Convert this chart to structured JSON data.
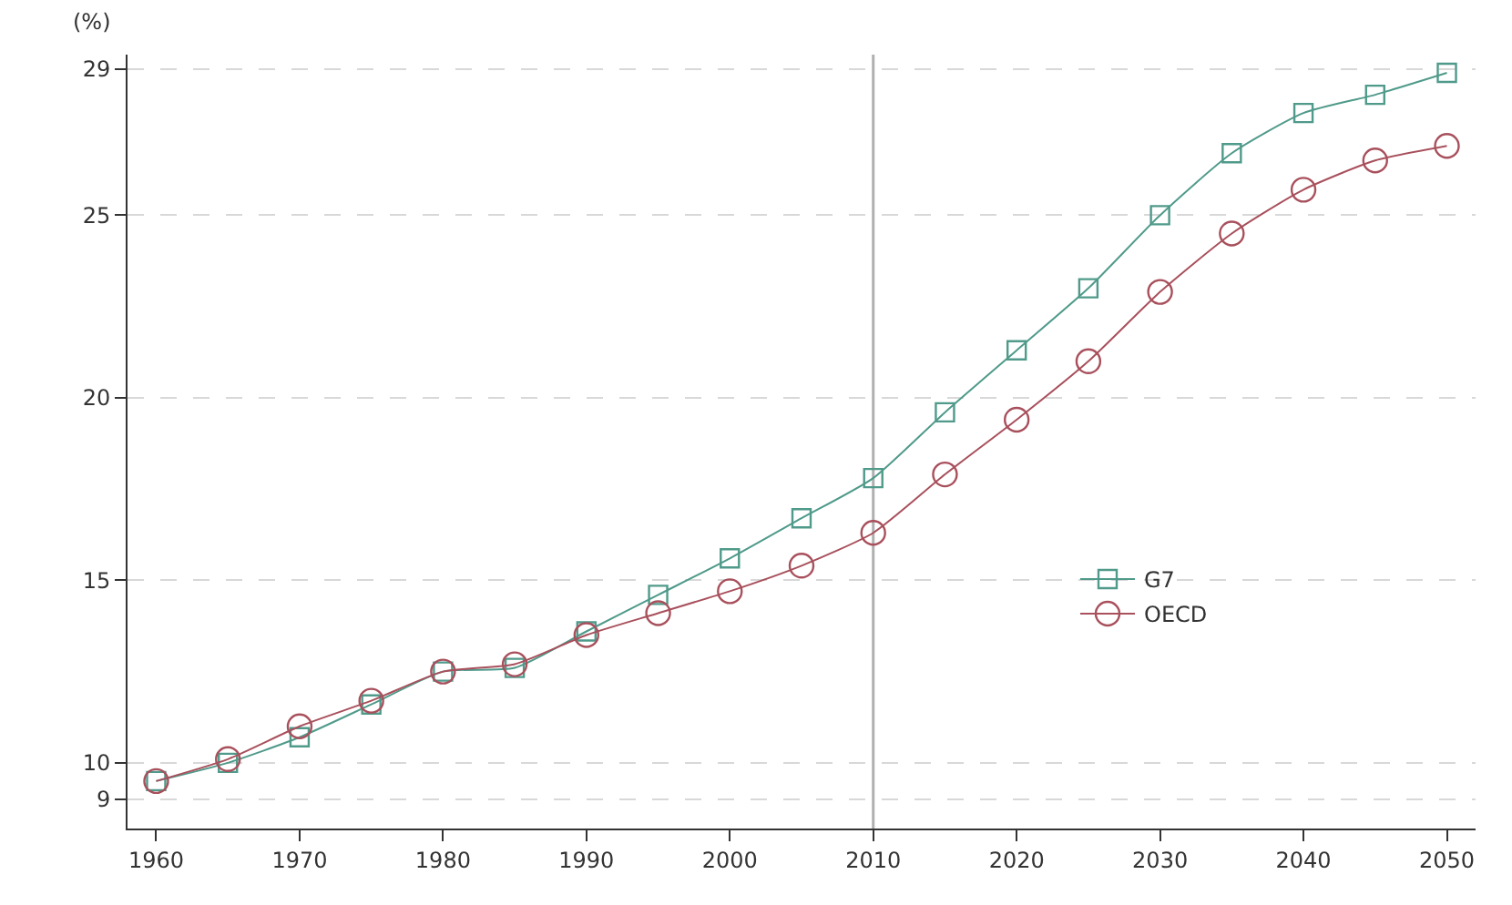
{
  "chart_data": {
    "type": "line",
    "ylabel": "(%)",
    "x": [
      1960,
      1965,
      1970,
      1975,
      1980,
      1985,
      1990,
      1995,
      2000,
      2005,
      2010,
      2015,
      2020,
      2025,
      2030,
      2035,
      2040,
      2045,
      2050
    ],
    "series": [
      {
        "name": "G7",
        "color": "#4f9a8a",
        "marker": "square",
        "values": [
          9.5,
          10.0,
          10.7,
          11.6,
          12.5,
          12.6,
          13.6,
          14.6,
          15.6,
          16.7,
          17.8,
          19.6,
          21.3,
          23.0,
          25.0,
          26.7,
          27.8,
          28.3,
          28.9
        ]
      },
      {
        "name": "OECD",
        "color": "#a8505c",
        "marker": "circle",
        "values": [
          9.5,
          10.1,
          11.0,
          11.7,
          12.5,
          12.7,
          13.5,
          14.1,
          14.7,
          15.4,
          16.3,
          17.9,
          19.4,
          21.0,
          22.9,
          24.5,
          25.7,
          26.5,
          26.9
        ]
      }
    ],
    "xlim": [
      1958,
      2052
    ],
    "xticks": [
      1960,
      1970,
      1980,
      1990,
      2000,
      2010,
      2020,
      2030,
      2040,
      2050
    ],
    "ylim": [
      8.2,
      29.4
    ],
    "yticks": [
      9,
      10,
      15,
      20,
      25,
      29
    ],
    "grid": "y",
    "legend": "right",
    "ref_lines": [
      {
        "axis": "x",
        "value": 2010,
        "color": "#b0b0b0"
      }
    ]
  }
}
